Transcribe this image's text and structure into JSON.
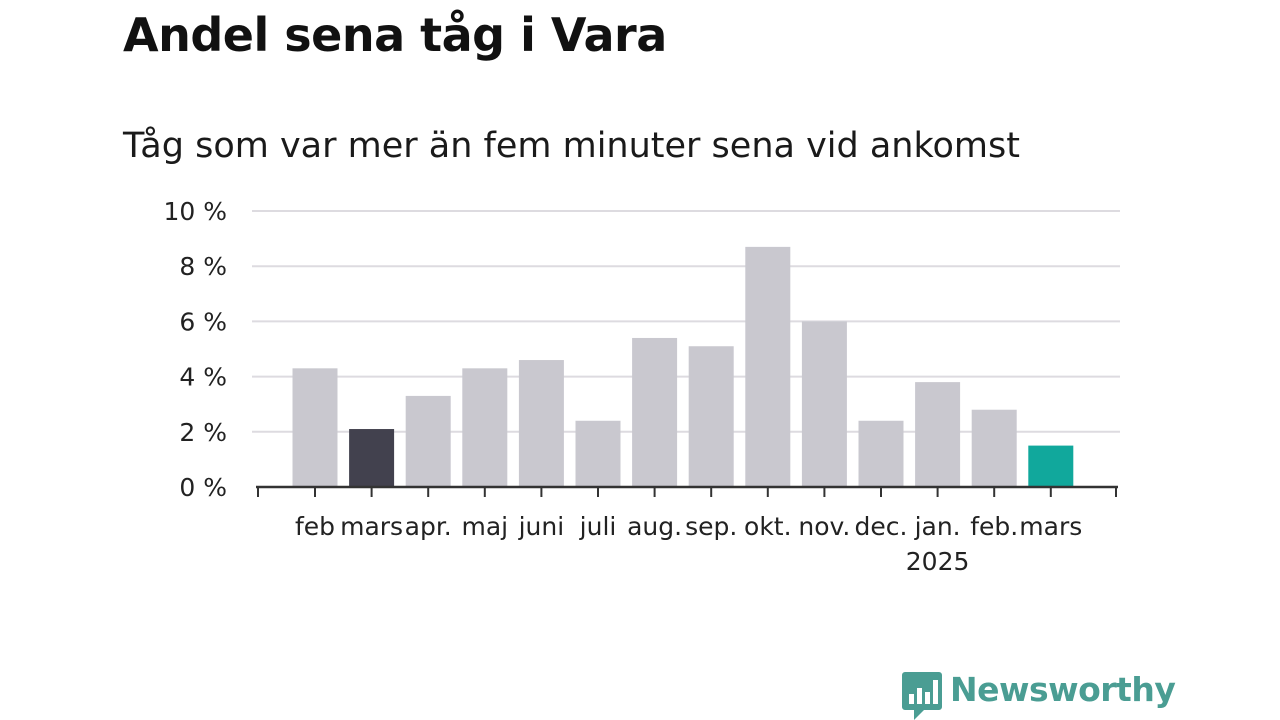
{
  "header": {
    "title": "Andel sena tåg i Vara",
    "subtitle": "Tåg som var mer än fem minuter sena vid ankomst"
  },
  "brand": {
    "name": "Newsworthy",
    "color": "#4a9d93",
    "icon": "bar-chart-bubble-icon"
  },
  "chart_data": {
    "type": "bar",
    "title": "Andel sena tåg i Vara",
    "subtitle": "Tåg som var mer än fem minuter sena vid ankomst",
    "categories": [
      "feb",
      "mars",
      "apr.",
      "maj",
      "juni",
      "juli",
      "aug.",
      "sep.",
      "okt.",
      "nov.",
      "dec.",
      "jan.",
      "feb.",
      "mars"
    ],
    "year_label": {
      "category_index": 11,
      "text": "2025"
    },
    "series": [
      {
        "values": [
          4.3,
          2.1,
          3.3,
          4.3,
          4.6,
          2.4,
          5.4,
          5.1,
          8.7,
          6.0,
          2.4,
          3.8,
          2.8,
          1.5
        ]
      }
    ],
    "bar_colors": [
      "#c9c8cf",
      "#42414e",
      "#c9c8cf",
      "#c9c8cf",
      "#c9c8cf",
      "#c9c8cf",
      "#c9c8cf",
      "#c9c8cf",
      "#c9c8cf",
      "#c9c8cf",
      "#c9c8cf",
      "#c9c8cf",
      "#c9c8cf",
      "#11a89c"
    ],
    "ylim": [
      0,
      10
    ],
    "yticks": [
      0,
      2,
      4,
      6,
      8,
      10
    ],
    "ytick_suffix": " %",
    "xlabel": "",
    "ylabel": "",
    "grid": true
  }
}
